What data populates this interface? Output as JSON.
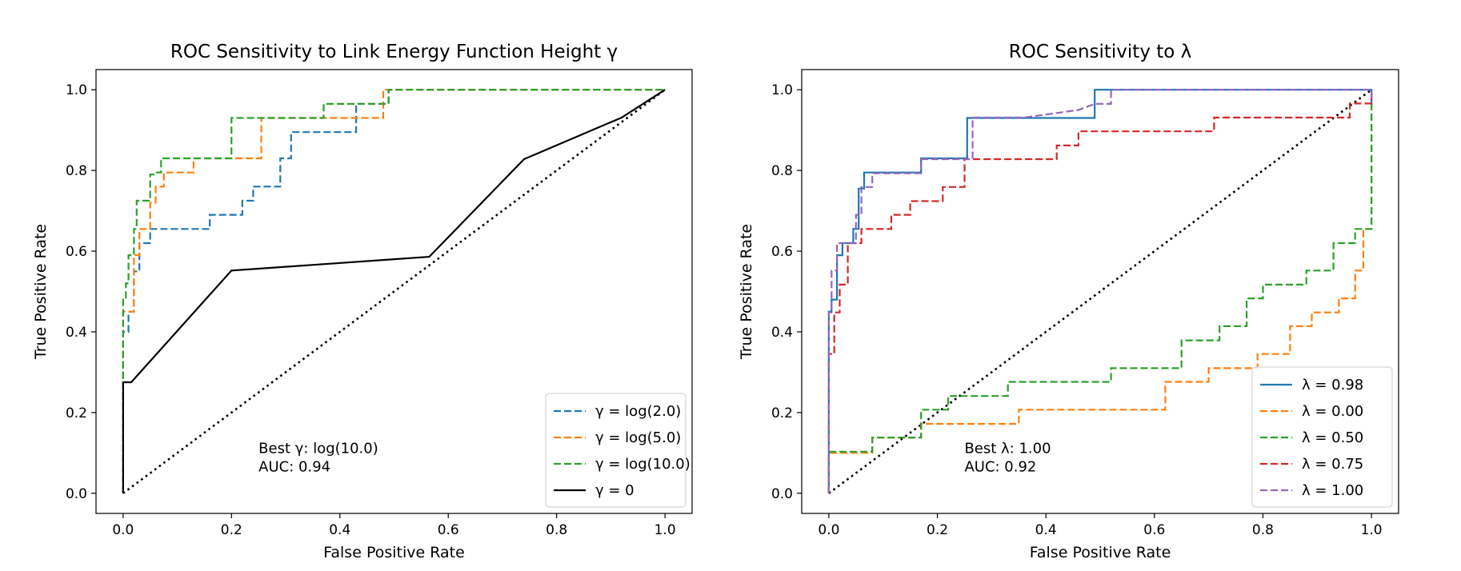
{
  "chart_data": [
    {
      "type": "line",
      "title": "ROC Sensitivity to Link Energy Function Height γ",
      "xlabel": "False Positive Rate",
      "ylabel": "True Positive Rate",
      "xlim": [
        -0.05,
        1.05
      ],
      "ylim": [
        -0.05,
        1.05
      ],
      "xticks": [
        0.0,
        0.2,
        0.4,
        0.6,
        0.8,
        1.0
      ],
      "yticks": [
        0.0,
        0.2,
        0.4,
        0.6,
        0.8,
        1.0
      ],
      "legend_position": "lower-right",
      "annotation": [
        "Best γ: log(10.0)",
        "AUC: 0.94"
      ],
      "annotation_at": [
        0.25,
        0.1
      ],
      "diagonal": true,
      "series": [
        {
          "name": "γ = log(2.0)",
          "color": "#1f77b4",
          "dash": true,
          "x": [
            0,
            0,
            0.01,
            0.01,
            0.02,
            0.02,
            0.03,
            0.03,
            0.05,
            0.05,
            0.16,
            0.16,
            0.22,
            0.22,
            0.24,
            0.24,
            0.29,
            0.29,
            0.31,
            0.31,
            0.43,
            0.43,
            0.49,
            0.49,
            1.0
          ],
          "y": [
            0,
            0.4,
            0.4,
            0.45,
            0.45,
            0.55,
            0.55,
            0.62,
            0.62,
            0.655,
            0.655,
            0.69,
            0.69,
            0.725,
            0.725,
            0.76,
            0.76,
            0.83,
            0.83,
            0.895,
            0.895,
            0.965,
            0.965,
            1.0,
            1.0
          ]
        },
        {
          "name": "γ = log(5.0)",
          "color": "#ff7f0e",
          "dash": true,
          "x": [
            0,
            0,
            0.02,
            0.02,
            0.03,
            0.03,
            0.05,
            0.05,
            0.06,
            0.06,
            0.075,
            0.075,
            0.13,
            0.13,
            0.255,
            0.255,
            0.48,
            0.48,
            1.0
          ],
          "y": [
            0,
            0.45,
            0.45,
            0.59,
            0.59,
            0.655,
            0.655,
            0.72,
            0.72,
            0.76,
            0.76,
            0.795,
            0.795,
            0.83,
            0.83,
            0.93,
            0.93,
            1.0,
            1.0
          ]
        },
        {
          "name": "γ = log(10.0)",
          "color": "#2ca02c",
          "dash": true,
          "x": [
            0,
            0,
            0.005,
            0.005,
            0.01,
            0.01,
            0.02,
            0.02,
            0.025,
            0.025,
            0.05,
            0.05,
            0.06,
            0.06,
            0.07,
            0.07,
            0.2,
            0.2,
            0.37,
            0.37,
            0.49,
            0.49,
            1.0
          ],
          "y": [
            0,
            0.48,
            0.48,
            0.52,
            0.52,
            0.59,
            0.59,
            0.655,
            0.655,
            0.725,
            0.725,
            0.79,
            0.79,
            0.795,
            0.795,
            0.83,
            0.83,
            0.93,
            0.93,
            0.965,
            0.965,
            1.0,
            1.0
          ]
        },
        {
          "name": "γ = 0",
          "color": "#000000",
          "dash": false,
          "x": [
            0,
            0,
            0.015,
            0.2,
            0.565,
            0.74,
            0.92,
            1.0
          ],
          "y": [
            0,
            0.275,
            0.275,
            0.552,
            0.586,
            0.828,
            0.931,
            1.0
          ]
        }
      ]
    },
    {
      "type": "line",
      "title": "ROC Sensitivity to λ",
      "xlabel": "False Positive Rate",
      "ylabel": "True Positive Rate",
      "xlim": [
        -0.05,
        1.05
      ],
      "ylim": [
        -0.05,
        1.05
      ],
      "xticks": [
        0.0,
        0.2,
        0.4,
        0.6,
        0.8,
        1.0
      ],
      "yticks": [
        0.0,
        0.2,
        0.4,
        0.6,
        0.8,
        1.0
      ],
      "legend_position": "lower-right",
      "annotation": [
        "Best λ: 1.00",
        "AUC: 0.92"
      ],
      "annotation_at": [
        0.25,
        0.1
      ],
      "diagonal": true,
      "series": [
        {
          "name": "λ = 0.98",
          "color": "#1f77b4",
          "dash": false,
          "x": [
            0,
            0,
            0.005,
            0.005,
            0.015,
            0.015,
            0.025,
            0.025,
            0.045,
            0.045,
            0.055,
            0.055,
            0.065,
            0.065,
            0.17,
            0.17,
            0.255,
            0.255,
            0.49,
            0.49,
            1.0,
            1.0
          ],
          "y": [
            0,
            0.45,
            0.45,
            0.48,
            0.48,
            0.59,
            0.59,
            0.62,
            0.62,
            0.655,
            0.655,
            0.755,
            0.755,
            0.795,
            0.795,
            0.83,
            0.83,
            0.93,
            0.93,
            1.0,
            1.0,
            0.96
          ]
        },
        {
          "name": "λ = 0.00",
          "color": "#ff7f0e",
          "dash": true,
          "x": [
            0,
            0,
            0.08,
            0.08,
            0.17,
            0.17,
            0.2,
            0.2,
            0.35,
            0.35,
            0.62,
            0.62,
            0.7,
            0.7,
            0.79,
            0.79,
            0.85,
            0.85,
            0.89,
            0.89,
            0.94,
            0.94,
            0.97,
            0.97,
            0.985,
            0.985,
            1.0,
            1.0
          ],
          "y": [
            0,
            0.1,
            0.1,
            0.138,
            0.138,
            0.172,
            0.172,
            0.172,
            0.172,
            0.207,
            0.207,
            0.276,
            0.276,
            0.31,
            0.31,
            0.345,
            0.345,
            0.414,
            0.414,
            0.448,
            0.448,
            0.483,
            0.483,
            0.552,
            0.552,
            0.655,
            0.655,
            1.0
          ]
        },
        {
          "name": "λ = 0.50",
          "color": "#2ca02c",
          "dash": true,
          "x": [
            0,
            0,
            0.08,
            0.08,
            0.17,
            0.17,
            0.22,
            0.22,
            0.33,
            0.33,
            0.52,
            0.52,
            0.65,
            0.65,
            0.72,
            0.72,
            0.77,
            0.77,
            0.8,
            0.8,
            0.88,
            0.88,
            0.93,
            0.93,
            0.97,
            0.97,
            1.0,
            1.0
          ],
          "y": [
            0,
            0.103,
            0.103,
            0.138,
            0.138,
            0.207,
            0.207,
            0.241,
            0.241,
            0.276,
            0.276,
            0.31,
            0.31,
            0.379,
            0.379,
            0.414,
            0.414,
            0.483,
            0.483,
            0.517,
            0.517,
            0.552,
            0.552,
            0.62,
            0.62,
            0.655,
            0.655,
            1.0
          ]
        },
        {
          "name": "λ = 0.75",
          "color": "#d62728",
          "dash": true,
          "x": [
            0,
            0,
            0.01,
            0.01,
            0.02,
            0.02,
            0.035,
            0.035,
            0.06,
            0.06,
            0.115,
            0.115,
            0.15,
            0.15,
            0.21,
            0.21,
            0.25,
            0.25,
            0.42,
            0.42,
            0.46,
            0.46,
            0.71,
            0.71,
            0.96,
            0.96,
            1.0,
            1.0
          ],
          "y": [
            0,
            0.345,
            0.345,
            0.448,
            0.448,
            0.517,
            0.517,
            0.62,
            0.62,
            0.655,
            0.655,
            0.69,
            0.69,
            0.724,
            0.724,
            0.759,
            0.759,
            0.828,
            0.828,
            0.862,
            0.862,
            0.897,
            0.897,
            0.931,
            0.931,
            0.966,
            0.966,
            1.0
          ]
        },
        {
          "name": "λ = 1.00",
          "color": "#9467bd",
          "dash": true,
          "x": [
            0,
            0,
            0.005,
            0.005,
            0.015,
            0.015,
            0.03,
            0.03,
            0.05,
            0.05,
            0.06,
            0.06,
            0.08,
            0.08,
            0.17,
            0.17,
            0.265,
            0.265,
            0.36,
            0.46,
            0.49,
            0.52,
            0.52,
            1.0,
            1.0
          ],
          "y": [
            0,
            0.448,
            0.448,
            0.552,
            0.552,
            0.62,
            0.62,
            0.62,
            0.62,
            0.69,
            0.69,
            0.759,
            0.759,
            0.793,
            0.793,
            0.828,
            0.828,
            0.931,
            0.931,
            0.95,
            0.965,
            0.965,
            1.0,
            1.0,
            0.97
          ]
        }
      ]
    }
  ]
}
